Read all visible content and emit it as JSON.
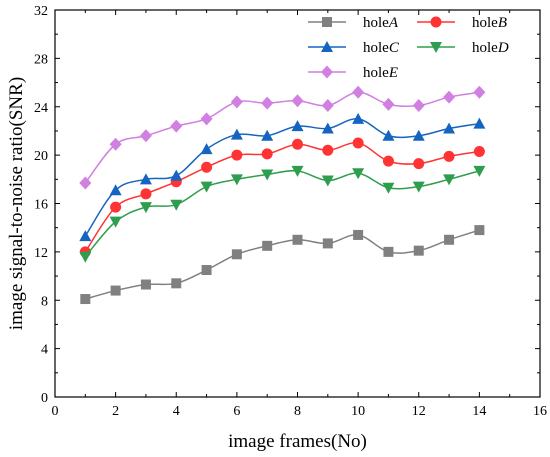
{
  "chart_data": {
    "type": "line",
    "xlabel": "image frames(No)",
    "ylabel": "image signal-to-noise ratio(SNR)",
    "xlim": [
      0,
      16
    ],
    "ylim": [
      0,
      32
    ],
    "xticks": [
      0,
      2,
      4,
      6,
      8,
      10,
      12,
      14,
      16
    ],
    "yticks": [
      0,
      4,
      8,
      12,
      16,
      20,
      24,
      28,
      32
    ],
    "grid": false,
    "legend_position": "top-right",
    "x": [
      1,
      2,
      3,
      4,
      5,
      6,
      7,
      8,
      9,
      10,
      11,
      12,
      13,
      14
    ],
    "series": [
      {
        "name": "hole",
        "name_suffix": "A",
        "color": "#808080",
        "marker": "square",
        "values": [
          8.1,
          8.8,
          9.3,
          9.4,
          10.5,
          11.8,
          12.5,
          13.0,
          12.7,
          13.4,
          12.0,
          12.1,
          13.0,
          13.8
        ]
      },
      {
        "name": "hole",
        "name_suffix": "B",
        "color": "#ff3333",
        "marker": "circle",
        "values": [
          12.0,
          15.7,
          16.8,
          17.8,
          19.0,
          20.0,
          20.1,
          20.9,
          20.4,
          21.0,
          19.5,
          19.3,
          19.9,
          20.3
        ]
      },
      {
        "name": "hole",
        "name_suffix": "C",
        "color": "#1565c0",
        "marker": "triangle-up",
        "values": [
          13.3,
          17.1,
          18.0,
          18.3,
          20.5,
          21.7,
          21.6,
          22.4,
          22.2,
          23.0,
          21.6,
          21.6,
          22.2,
          22.6
        ]
      },
      {
        "name": "hole",
        "name_suffix": "D",
        "color": "#2e9e4e",
        "marker": "triangle-down",
        "values": [
          11.6,
          14.5,
          15.7,
          15.9,
          17.4,
          18.0,
          18.4,
          18.7,
          17.9,
          18.5,
          17.3,
          17.4,
          18.0,
          18.7
        ]
      },
      {
        "name": "hole",
        "name_suffix": "E",
        "color": "#d17fe0",
        "marker": "diamond",
        "values": [
          17.7,
          20.9,
          21.6,
          22.4,
          23.0,
          24.4,
          24.3,
          24.5,
          24.1,
          25.2,
          24.2,
          24.1,
          24.8,
          25.2
        ]
      }
    ]
  }
}
